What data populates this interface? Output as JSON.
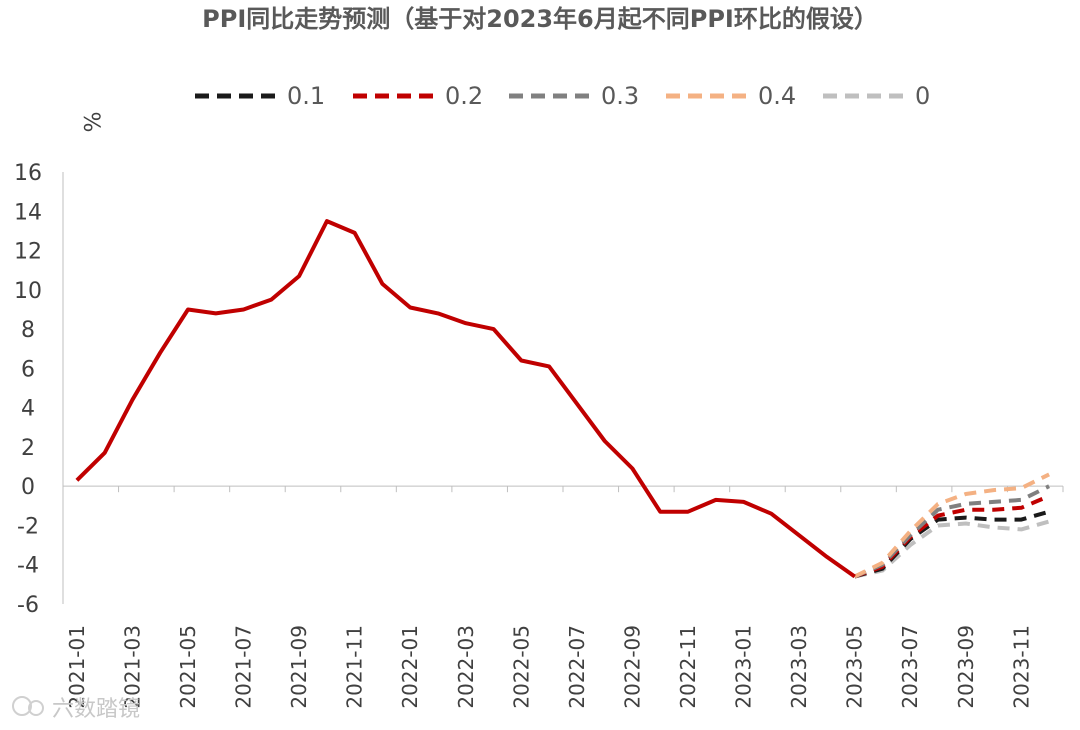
{
  "chart_data": {
    "type": "line",
    "title": "PPI同比走势预测（基于对2023年6月起不同PPI环比的假设）",
    "ylabel": "%",
    "xlabel": "",
    "ylim": [
      -6,
      16
    ],
    "yticks": [
      -6,
      -4,
      -2,
      0,
      2,
      4,
      6,
      8,
      10,
      12,
      14,
      16
    ],
    "x": [
      "2021-01",
      "2021-02",
      "2021-03",
      "2021-04",
      "2021-05",
      "2021-06",
      "2021-07",
      "2021-08",
      "2021-09",
      "2021-10",
      "2021-11",
      "2021-12",
      "2022-01",
      "2022-02",
      "2022-03",
      "2022-04",
      "2022-05",
      "2022-06",
      "2022-07",
      "2022-08",
      "2022-09",
      "2022-10",
      "2022-11",
      "2022-12",
      "2023-01",
      "2023-02",
      "2023-03",
      "2023-04",
      "2023-05",
      "2023-06",
      "2023-07",
      "2023-08",
      "2023-09",
      "2023-10",
      "2023-11",
      "2023-12"
    ],
    "xtick_labels": [
      "2021-01",
      "2021-03",
      "2021-05",
      "2021-07",
      "2021-09",
      "2021-11",
      "2022-01",
      "2022-03",
      "2022-05",
      "2022-07",
      "2022-09",
      "2022-11",
      "2023-01",
      "2023-03",
      "2023-05",
      "2023-07",
      "2023-09",
      "2023-11"
    ],
    "actual": {
      "color": "#c00000",
      "x": [
        "2021-01",
        "2021-02",
        "2021-03",
        "2021-04",
        "2021-05",
        "2021-06",
        "2021-07",
        "2021-08",
        "2021-09",
        "2021-10",
        "2021-11",
        "2021-12",
        "2022-01",
        "2022-02",
        "2022-03",
        "2022-04",
        "2022-05",
        "2022-06",
        "2022-07",
        "2022-08",
        "2022-09",
        "2022-10",
        "2022-11",
        "2022-12",
        "2023-01",
        "2023-02",
        "2023-03",
        "2023-04",
        "2023-05"
      ],
      "values": [
        0.3,
        1.7,
        4.4,
        6.8,
        9.0,
        8.8,
        9.0,
        9.5,
        10.7,
        13.5,
        12.9,
        10.3,
        9.1,
        8.8,
        8.3,
        8.0,
        6.4,
        6.1,
        4.2,
        2.3,
        0.9,
        -1.3,
        -1.3,
        -0.7,
        -0.8,
        -1.4,
        -2.5,
        -3.6,
        -4.6
      ]
    },
    "series": [
      {
        "name": "0.1",
        "color": "#1a1a1a",
        "x": [
          "2023-05",
          "2023-06",
          "2023-07",
          "2023-08",
          "2023-09",
          "2023-10",
          "2023-11",
          "2023-12"
        ],
        "values": [
          -4.6,
          -4.2,
          -2.7,
          -1.7,
          -1.6,
          -1.7,
          -1.7,
          -1.3
        ]
      },
      {
        "name": "0.2",
        "color": "#c00000",
        "x": [
          "2023-05",
          "2023-06",
          "2023-07",
          "2023-08",
          "2023-09",
          "2023-10",
          "2023-11",
          "2023-12"
        ],
        "values": [
          -4.6,
          -4.1,
          -2.6,
          -1.5,
          -1.2,
          -1.2,
          -1.1,
          -0.5
        ]
      },
      {
        "name": "0.3",
        "color": "#808080",
        "x": [
          "2023-05",
          "2023-06",
          "2023-07",
          "2023-08",
          "2023-09",
          "2023-10",
          "2023-11",
          "2023-12"
        ],
        "values": [
          -4.6,
          -4.0,
          -2.5,
          -1.2,
          -0.9,
          -0.8,
          -0.7,
          0.0
        ]
      },
      {
        "name": "0.4",
        "color": "#f4b183",
        "x": [
          "2023-05",
          "2023-06",
          "2023-07",
          "2023-08",
          "2023-09",
          "2023-10",
          "2023-11",
          "2023-12"
        ],
        "values": [
          -4.6,
          -3.9,
          -2.3,
          -0.9,
          -0.4,
          -0.2,
          -0.1,
          0.6
        ]
      },
      {
        "name": "0",
        "color": "#bfbfbf",
        "x": [
          "2023-05",
          "2023-06",
          "2023-07",
          "2023-08",
          "2023-09",
          "2023-10",
          "2023-11",
          "2023-12"
        ],
        "values": [
          -4.6,
          -4.3,
          -3.0,
          -2.0,
          -1.9,
          -2.1,
          -2.2,
          -1.8
        ]
      }
    ],
    "legend_position": "top",
    "grid": false
  },
  "watermark": "六数踏镜"
}
